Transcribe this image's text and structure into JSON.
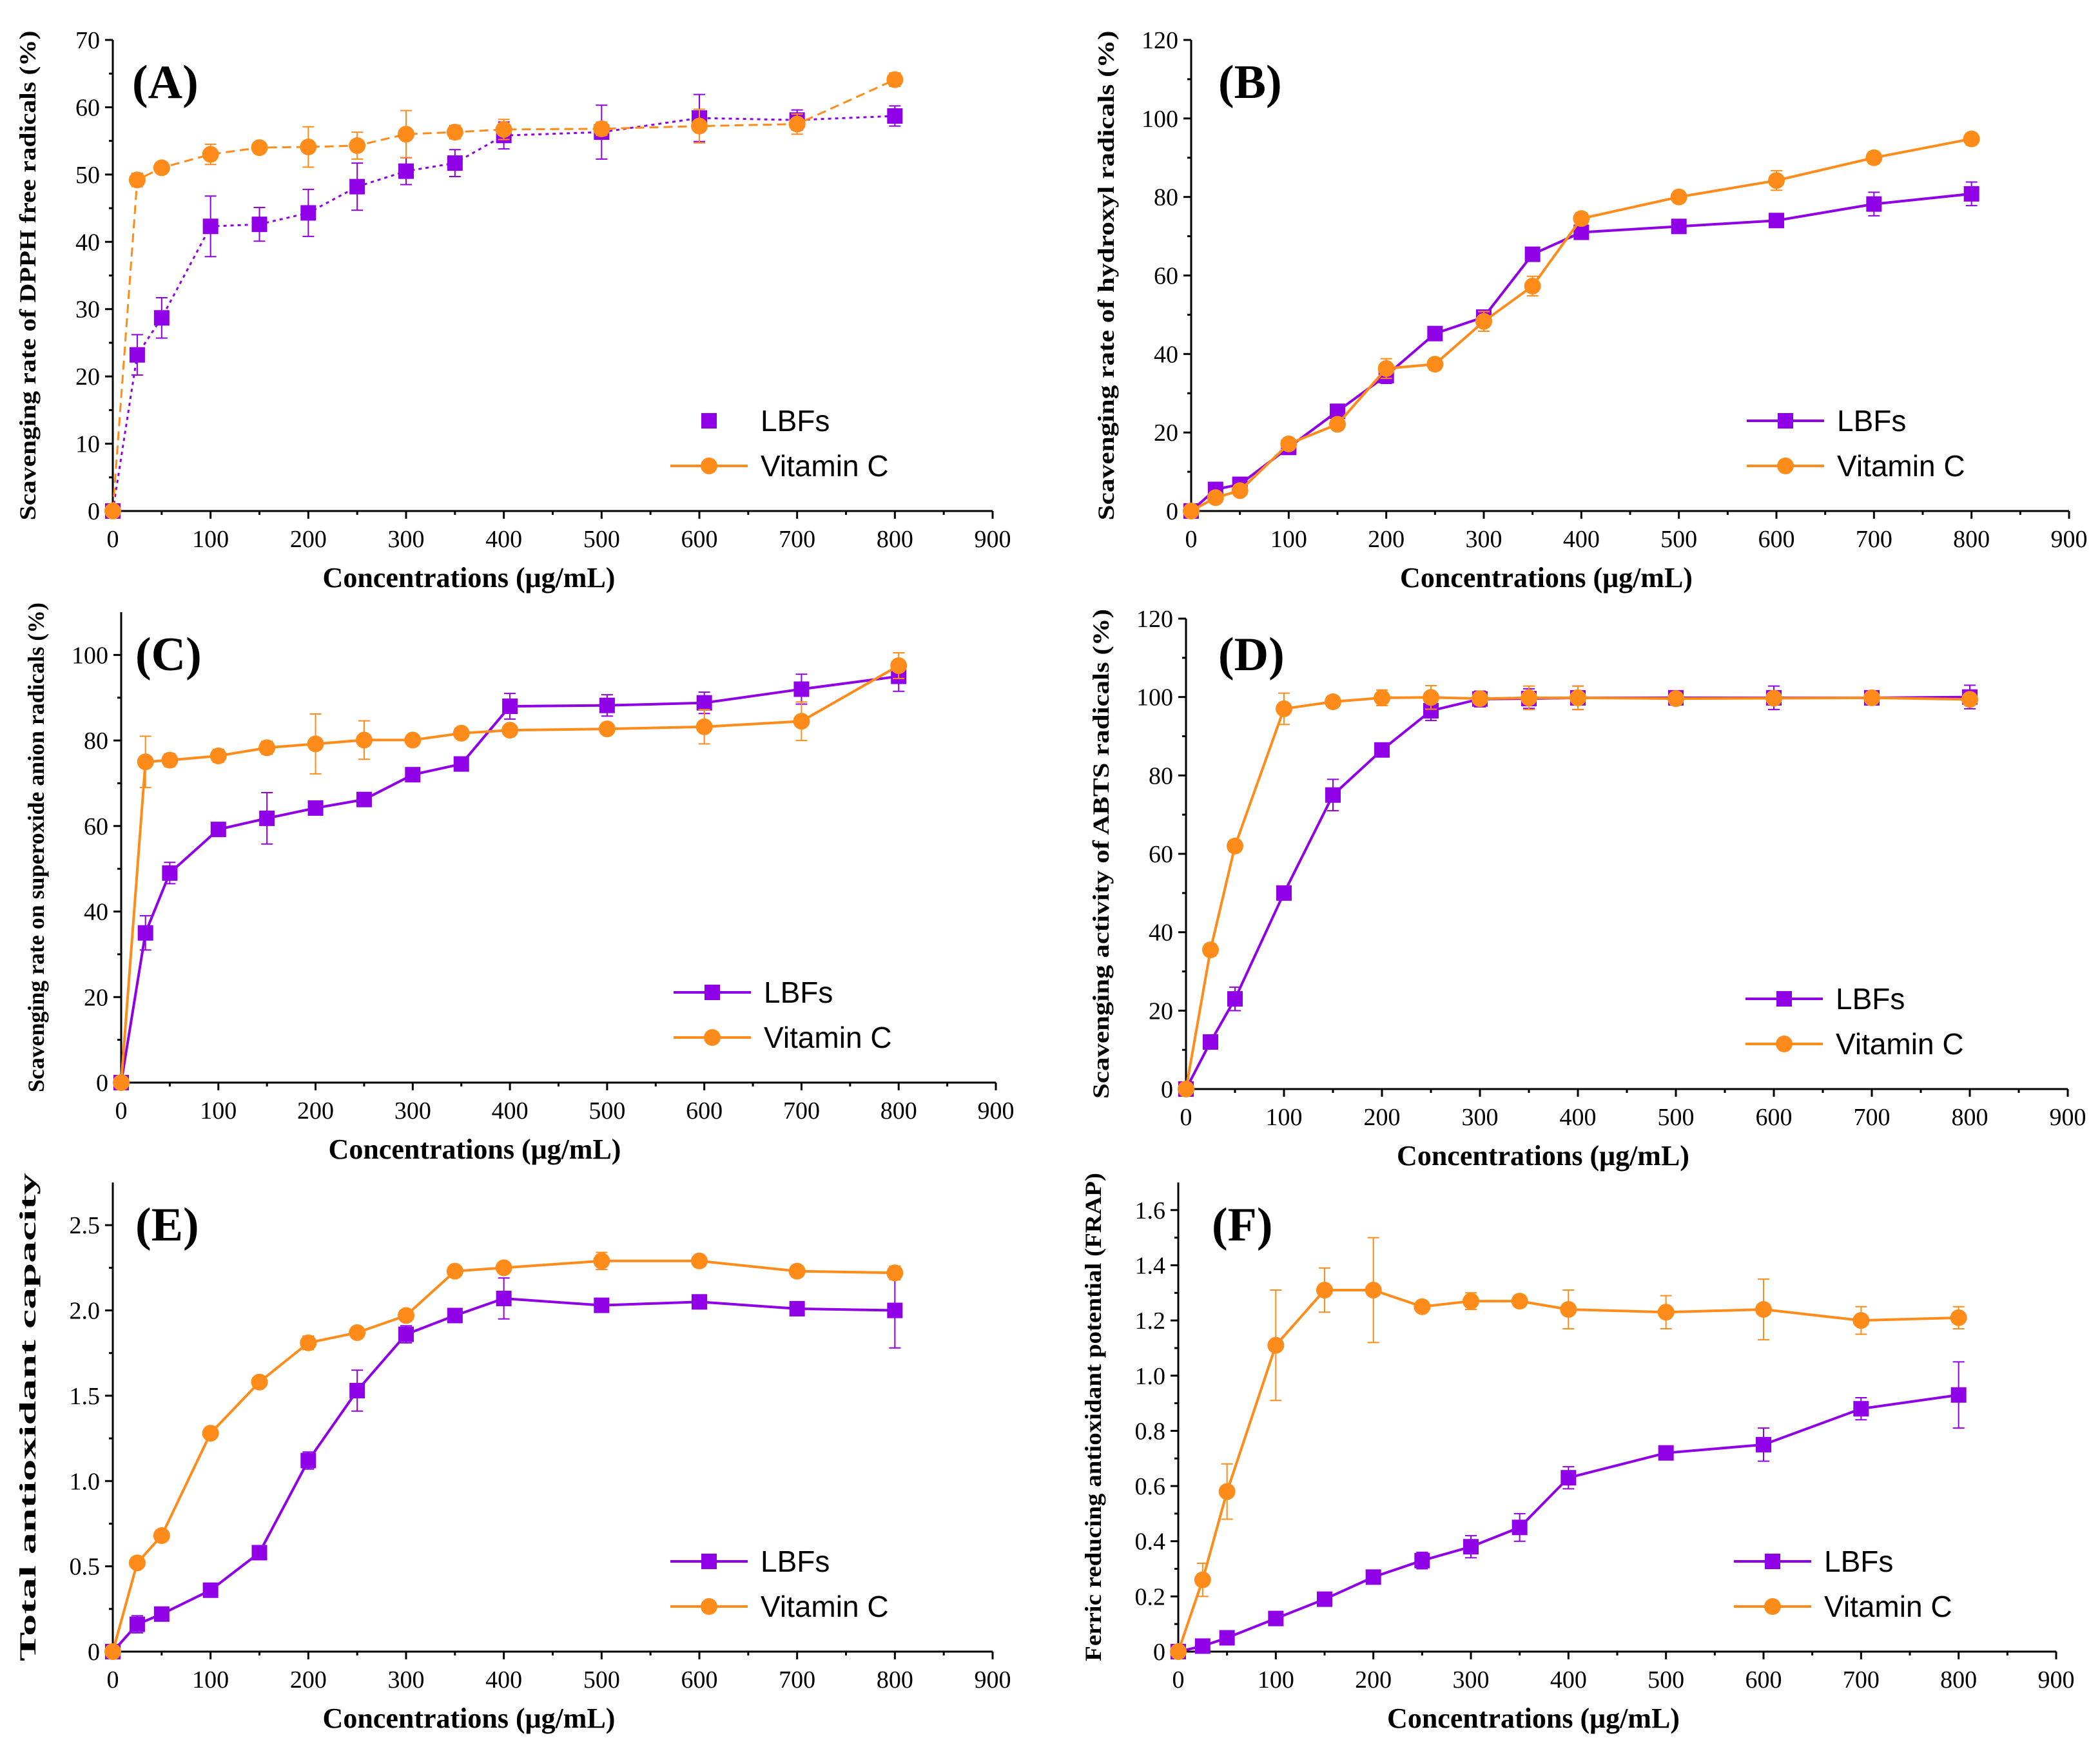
{
  "colors": {
    "lbfs": "#8f00e6",
    "vitc": "#ff8c1a"
  },
  "chart_data": [
    {
      "id": "A",
      "type": "line",
      "panel_label": "(A)",
      "xlabel": "Concentrations (μg/mL)",
      "ylabel": "Scavenging rate of  DPPH free radicals (%)",
      "xlim": [
        0,
        900
      ],
      "ylim": [
        0,
        70
      ],
      "xticks": [
        0,
        100,
        200,
        300,
        400,
        500,
        600,
        700,
        800,
        900
      ],
      "yticks": [
        0,
        10,
        20,
        30,
        40,
        50,
        60,
        70
      ],
      "x": [
        0,
        25,
        50,
        100,
        150,
        200,
        250,
        300,
        350,
        400,
        500,
        600,
        700,
        800
      ],
      "line_style": "dashed",
      "series": [
        {
          "name": "LBFs",
          "values": [
            0,
            23.2,
            28.7,
            42.3,
            42.6,
            44.3,
            48.2,
            50.5,
            51.7,
            55.8,
            56.3,
            58.4,
            58.1,
            58.7
          ],
          "errors": [
            0,
            3,
            3,
            4.5,
            2.5,
            3.5,
            3.5,
            2,
            2,
            2,
            4,
            3.5,
            1.5,
            1.5
          ]
        },
        {
          "name": "Vitamin C",
          "values": [
            0,
            49.2,
            51.0,
            53.0,
            54.0,
            54.1,
            54.3,
            56.0,
            56.3,
            56.7,
            56.8,
            57.2,
            57.5,
            64.1
          ],
          "errors": [
            0,
            1,
            0.8,
            1.5,
            0.8,
            3,
            2,
            3.5,
            1,
            1.5,
            1,
            2.5,
            1.5,
            1
          ]
        }
      ],
      "legend": [
        "LBFs",
        "Vitamin C"
      ],
      "legend_position": "bottom-right"
    },
    {
      "id": "B",
      "type": "line",
      "panel_label": "(B)",
      "xlabel": "Concentrations (μg/mL)",
      "ylabel": "Scavenging rate of hydroxyl radicals (%)",
      "xlim": [
        0,
        900
      ],
      "ylim": [
        0,
        120
      ],
      "xticks": [
        0,
        100,
        200,
        300,
        400,
        500,
        600,
        700,
        800,
        900
      ],
      "yticks": [
        0,
        20,
        40,
        60,
        80,
        100,
        120
      ],
      "x": [
        0,
        25,
        50,
        100,
        150,
        200,
        250,
        300,
        350,
        400,
        500,
        600,
        700,
        800
      ],
      "line_style": "solid",
      "series": [
        {
          "name": "LBFs",
          "values": [
            0,
            5.5,
            6.8,
            16.2,
            25.4,
            34.5,
            45.2,
            49.4,
            65.4,
            71.0,
            72.5,
            74.0,
            78.2,
            80.8
          ],
          "errors": [
            0,
            1.5,
            1,
            1.5,
            1.5,
            2,
            1.5,
            1.5,
            1.5,
            1.5,
            1.5,
            1.5,
            3,
            3
          ]
        },
        {
          "name": "Vitamin C",
          "values": [
            0,
            3.4,
            5.2,
            17.1,
            22.1,
            36.3,
            37.4,
            48.3,
            57.3,
            74.5,
            80.0,
            84.2,
            90.0,
            94.8
          ],
          "errors": [
            0,
            1,
            1,
            1.5,
            1.5,
            2.5,
            1.5,
            2.5,
            2.5,
            1.5,
            1.5,
            2.5,
            1.5,
            1.5
          ]
        }
      ],
      "legend": [
        "LBFs",
        "Vitamin C"
      ],
      "legend_position": "bottom-right"
    },
    {
      "id": "C",
      "type": "line",
      "panel_label": "(C)",
      "xlabel": "Concentrations (μg/mL)",
      "ylabel": "Scavenging rate on superoxide anion radicals (%)",
      "xlim": [
        0,
        900
      ],
      "ylim": [
        0,
        110
      ],
      "xticks": [
        0,
        100,
        200,
        300,
        400,
        500,
        600,
        700,
        800,
        900
      ],
      "yticks": [
        0,
        20,
        40,
        60,
        80,
        100
      ],
      "x": [
        0,
        25,
        50,
        100,
        150,
        200,
        250,
        300,
        350,
        400,
        500,
        600,
        700,
        800
      ],
      "line_style": "solid",
      "series": [
        {
          "name": "LBFs",
          "values": [
            0,
            35.0,
            49.0,
            59.2,
            61.8,
            64.2,
            66.2,
            72.0,
            74.5,
            88.0,
            88.2,
            88.8,
            92.0,
            95.0
          ],
          "errors": [
            0,
            4,
            2.5,
            1.5,
            6,
            1.5,
            1.5,
            1.5,
            1.5,
            3,
            2.5,
            2.5,
            3.5,
            3.5
          ]
        },
        {
          "name": "Vitamin C",
          "values": [
            0,
            75.0,
            75.4,
            76.4,
            78.3,
            79.2,
            80.1,
            80.1,
            81.7,
            82.4,
            82.7,
            83.2,
            84.5,
            97.5
          ],
          "errors": [
            0,
            6,
            1.5,
            1.5,
            1.5,
            7,
            4.5,
            1,
            1,
            1,
            1,
            4,
            4.5,
            3
          ]
        }
      ],
      "legend": [
        "LBFs",
        "Vitamin C"
      ],
      "legend_position": "bottom-right"
    },
    {
      "id": "D",
      "type": "line",
      "panel_label": "(D)",
      "xlabel": "Concentrations (μg/mL)",
      "ylabel": "Scavenging activity of ABTS radicals (%)",
      "xlim": [
        0,
        900
      ],
      "ylim": [
        0,
        120
      ],
      "xticks": [
        0,
        100,
        200,
        300,
        400,
        500,
        600,
        700,
        800,
        900
      ],
      "yticks": [
        0,
        20,
        40,
        60,
        80,
        100,
        120
      ],
      "x": [
        0,
        25,
        50,
        100,
        150,
        200,
        250,
        300,
        350,
        400,
        500,
        600,
        700,
        800
      ],
      "line_style": "solid",
      "series": [
        {
          "name": "LBFs",
          "values": [
            0,
            12.0,
            23.0,
            50.0,
            75.0,
            86.5,
            96.5,
            99.5,
            99.6,
            99.8,
            99.8,
            99.8,
            99.8,
            100.0
          ],
          "errors": [
            0,
            1.5,
            3,
            1.5,
            4,
            1.5,
            2.5,
            2,
            2.5,
            3,
            1.5,
            3,
            1.5,
            3
          ]
        },
        {
          "name": "Vitamin C",
          "values": [
            0,
            35.5,
            62.0,
            97.0,
            98.8,
            99.8,
            99.9,
            99.6,
            99.8,
            99.8,
            99.6,
            99.7,
            99.8,
            99.4
          ],
          "errors": [
            0,
            1.5,
            1.5,
            4,
            1.5,
            2,
            3,
            1.5,
            3,
            3,
            1.5,
            1.5,
            1.5,
            1.5
          ]
        }
      ],
      "legend": [
        "LBFs",
        "Vitamin C"
      ],
      "legend_position": "bottom-right"
    },
    {
      "id": "E",
      "type": "line",
      "panel_label": "(E)",
      "xlabel": "Concentrations (μg/mL)",
      "ylabel": "Total antioxidant capacity",
      "xlim": [
        0,
        900
      ],
      "ylim": [
        0,
        2.75
      ],
      "xticks": [
        0,
        100,
        200,
        300,
        400,
        500,
        600,
        700,
        800,
        900
      ],
      "yticks": [
        0,
        0.5,
        1.0,
        1.5,
        2.0,
        2.5
      ],
      "ytick_labels": [
        "0",
        "0.5",
        "1.0",
        "1.5",
        "2.0",
        "2.5"
      ],
      "x": [
        0,
        25,
        50,
        100,
        150,
        200,
        250,
        300,
        350,
        400,
        500,
        600,
        700,
        800
      ],
      "line_style": "solid",
      "series": [
        {
          "name": "LBFs",
          "values": [
            0,
            0.16,
            0.22,
            0.36,
            0.58,
            1.12,
            1.53,
            1.86,
            1.97,
            2.07,
            2.03,
            2.05,
            2.01,
            2.0
          ],
          "errors": [
            0,
            0.05,
            0.03,
            0.03,
            0.03,
            0.05,
            0.12,
            0.05,
            0.04,
            0.12,
            0.04,
            0.04,
            0.04,
            0.22
          ]
        },
        {
          "name": "Vitamin C",
          "values": [
            0,
            0.52,
            0.68,
            1.28,
            1.58,
            1.81,
            1.87,
            1.97,
            2.23,
            2.25,
            2.29,
            2.29,
            2.23,
            2.22
          ],
          "errors": [
            0,
            0.03,
            0.03,
            0.03,
            0.03,
            0.04,
            0.03,
            0.03,
            0.03,
            0.03,
            0.05,
            0.03,
            0.03,
            0.04
          ]
        }
      ],
      "legend": [
        "LBFs",
        "Vitamin C"
      ],
      "legend_position": "bottom-right"
    },
    {
      "id": "F",
      "type": "line",
      "panel_label": "(F)",
      "xlabel": "Concentrations (μg/mL)",
      "ylabel": "Ferric reducing antioxidant potential (FRAP)",
      "xlim": [
        0,
        900
      ],
      "ylim": [
        0,
        1.7
      ],
      "xticks": [
        0,
        100,
        200,
        300,
        400,
        500,
        600,
        700,
        800,
        900
      ],
      "yticks": [
        0,
        0.2,
        0.4,
        0.6,
        0.8,
        1.0,
        1.2,
        1.4,
        1.6
      ],
      "ytick_labels": [
        "0",
        "0.2",
        "0.4",
        "0.6",
        "0.8",
        "1.0",
        "1.2",
        "1.4",
        "1.6"
      ],
      "x": [
        0,
        25,
        50,
        100,
        150,
        200,
        250,
        300,
        350,
        400,
        500,
        600,
        700,
        800
      ],
      "line_style": "solid",
      "series": [
        {
          "name": "LBFs",
          "values": [
            0,
            0.02,
            0.05,
            0.12,
            0.19,
            0.27,
            0.33,
            0.38,
            0.45,
            0.63,
            0.72,
            0.75,
            0.88,
            0.93
          ],
          "errors": [
            0,
            0.02,
            0.02,
            0.02,
            0.02,
            0.02,
            0.03,
            0.04,
            0.05,
            0.04,
            0.02,
            0.06,
            0.04,
            0.12
          ]
        },
        {
          "name": "Vitamin C",
          "values": [
            0,
            0.26,
            0.58,
            1.11,
            1.31,
            1.31,
            1.25,
            1.27,
            1.27,
            1.24,
            1.23,
            1.24,
            1.2,
            1.21
          ],
          "errors": [
            0,
            0.06,
            0.1,
            0.2,
            0.08,
            0.19,
            0.02,
            0.03,
            0.02,
            0.07,
            0.06,
            0.11,
            0.05,
            0.04
          ]
        }
      ],
      "legend": [
        "LBFs",
        "Vitamin C"
      ],
      "legend_position": "bottom-right"
    }
  ]
}
